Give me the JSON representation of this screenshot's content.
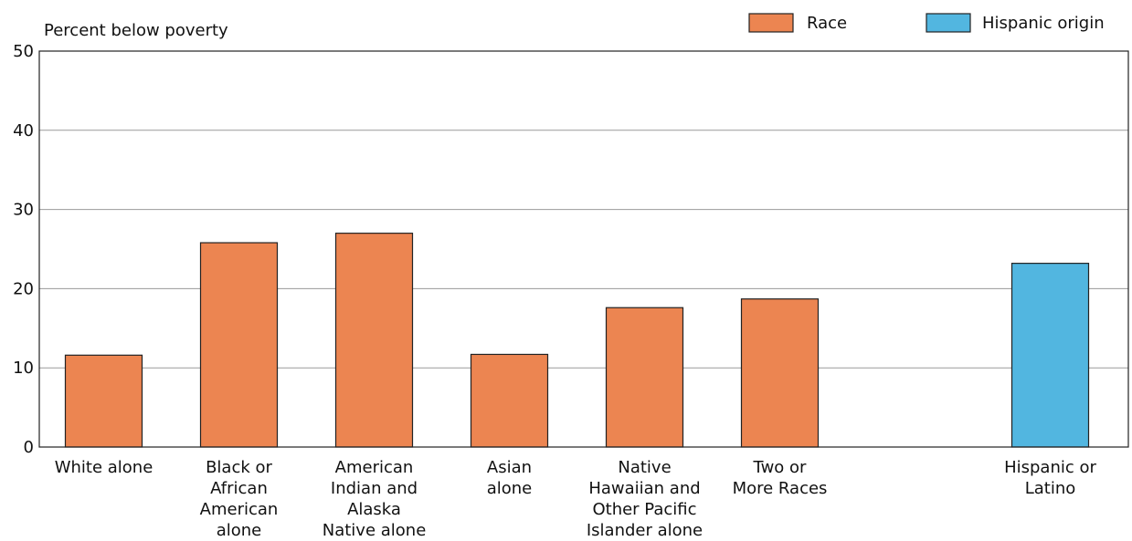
{
  "chart_data": {
    "type": "bar",
    "ylabel": "Percent below poverty",
    "ylim": [
      0,
      50
    ],
    "yticks": [
      0,
      10,
      20,
      30,
      40,
      50
    ],
    "grid": true,
    "legend_position": "top-right",
    "categories": [
      "White alone",
      "Black or African American alone",
      "American Indian and Alaska Native alone",
      "Asian alone",
      "Native Hawaiian and Other Pacific Islander alone",
      "Two or More Races",
      "Hispanic or Latino"
    ],
    "category_label_lines": [
      [
        "White alone"
      ],
      [
        "Black or",
        "African",
        "American",
        "alone"
      ],
      [
        "American",
        "Indian and",
        "Alaska",
        "Native alone"
      ],
      [
        "Asian",
        "alone"
      ],
      [
        "Native",
        "Hawaiian and",
        "Other Pacific",
        "Islander alone"
      ],
      [
        "Two or",
        "More Races"
      ],
      [
        "Hispanic or",
        "Latino"
      ]
    ],
    "series": [
      {
        "name": "Race",
        "color": "#EC8551",
        "values": [
          11.6,
          25.8,
          27.0,
          11.7,
          17.6,
          18.7,
          null
        ]
      },
      {
        "name": "Hispanic origin",
        "color": "#52B6E0",
        "values": [
          null,
          null,
          null,
          null,
          null,
          null,
          23.2
        ]
      }
    ]
  }
}
